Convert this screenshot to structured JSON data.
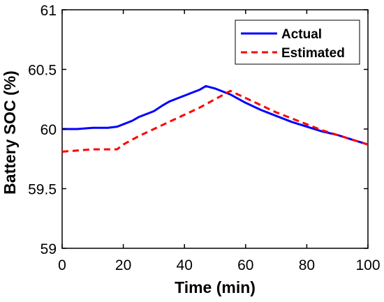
{
  "chart_data": {
    "type": "line",
    "xlabel": "Time (min)",
    "ylabel": "Battery SOC (%)",
    "xlim": [
      0,
      100
    ],
    "ylim": [
      59,
      61
    ],
    "xticks": [
      "0",
      "20",
      "40",
      "60",
      "80",
      "100"
    ],
    "yticks": [
      "59",
      "59.5",
      "60",
      "60.5",
      "61"
    ],
    "xtick_values": [
      0,
      20,
      40,
      60,
      80,
      100
    ],
    "ytick_values": [
      59,
      59.5,
      60,
      60.5,
      61
    ],
    "grid": false,
    "legend_position": "top-right",
    "series": [
      {
        "name": "Actual",
        "color": "#0000ff",
        "style": "solid",
        "x": [
          0,
          5,
          10,
          15,
          18,
          20,
          23,
          25,
          27,
          30,
          33,
          35,
          38,
          40,
          43,
          45,
          47,
          50,
          53,
          55,
          60,
          65,
          70,
          75,
          80,
          85,
          90,
          95,
          100
        ],
        "y": [
          60.0,
          60.0,
          60.01,
          60.01,
          60.02,
          60.04,
          60.07,
          60.1,
          60.12,
          60.15,
          60.2,
          60.23,
          60.26,
          60.28,
          60.31,
          60.33,
          60.36,
          60.34,
          60.31,
          60.29,
          60.22,
          60.16,
          60.11,
          60.06,
          60.02,
          59.98,
          59.95,
          59.91,
          59.87
        ]
      },
      {
        "name": "Estimated",
        "color": "#ff0000",
        "style": "dashed",
        "x": [
          0,
          5,
          10,
          15,
          18,
          20,
          25,
          30,
          35,
          40,
          45,
          50,
          55,
          60,
          65,
          70,
          75,
          80,
          85,
          90,
          95,
          100
        ],
        "y": [
          59.81,
          59.82,
          59.83,
          59.83,
          59.83,
          59.87,
          59.94,
          60.0,
          60.06,
          60.12,
          60.18,
          60.25,
          60.32,
          60.26,
          60.2,
          60.14,
          60.09,
          60.04,
          59.99,
          59.95,
          59.91,
          59.87
        ]
      }
    ]
  }
}
